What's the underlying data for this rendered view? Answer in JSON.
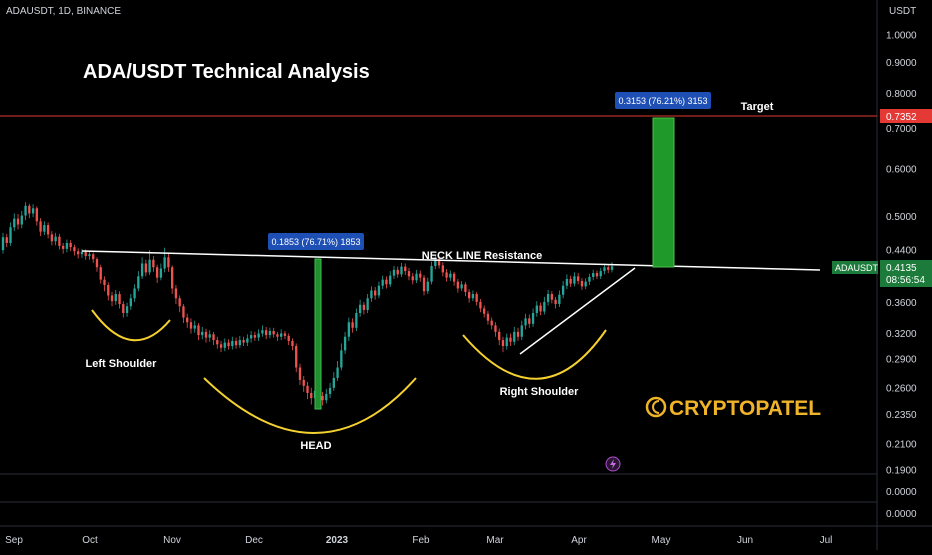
{
  "header": {
    "symbol": "ADAUSDT, 1D, BINANCE",
    "currency": "USDT"
  },
  "title": "ADA/USDT Technical Analysis",
  "brand": {
    "name": "CRYPTOPATEL",
    "color": "#f0b429"
  },
  "colors": {
    "up": "#26a69a",
    "down": "#ef5350",
    "pattern": "#f5d130",
    "target_line": "#e53935",
    "measure": "#2ea043"
  },
  "chart_data": {
    "type": "candlestick",
    "price_axis": {
      "ticks": [
        "1.0000",
        "0.9000",
        "0.8000",
        "0.7000",
        "0.6000",
        "0.5000",
        "0.4400",
        "0.3600",
        "0.3200",
        "0.2900",
        "0.2600",
        "0.2350",
        "0.2100",
        "0.1900"
      ],
      "scale": "log"
    },
    "indicator_axis": {
      "ticks": [
        "0.0000",
        "0.0000"
      ]
    },
    "time_axis": {
      "ticks": [
        "Sep",
        "Oct",
        "Nov",
        "Dec",
        "2023",
        "Feb",
        "Mar",
        "Apr",
        "May",
        "Jun",
        "Jul"
      ]
    },
    "last_price": {
      "symbol": "ADAUSDT",
      "value": "0.4135",
      "countdown": "08:56:54"
    },
    "target": {
      "label": "Target",
      "value": "0.7352"
    },
    "measures": [
      {
        "text": "0.1853 (76.71%) 1853"
      },
      {
        "text": "0.3153 (76.21%) 3153"
      }
    ],
    "annotations": {
      "neckline": "NECK LINE Resistance",
      "left_shoulder": "Left Shoulder",
      "head": "HEAD",
      "right_shoulder": "Right Shoulder"
    },
    "candles": [
      {
        "o": 0.44,
        "c": 0.462,
        "h": 0.47,
        "l": 0.434
      },
      {
        "o": 0.462,
        "c": 0.452,
        "h": 0.468,
        "l": 0.445
      },
      {
        "o": 0.452,
        "c": 0.48,
        "h": 0.489,
        "l": 0.447
      },
      {
        "o": 0.48,
        "c": 0.496,
        "h": 0.506,
        "l": 0.473
      },
      {
        "o": 0.496,
        "c": 0.485,
        "h": 0.505,
        "l": 0.476
      },
      {
        "o": 0.485,
        "c": 0.502,
        "h": 0.511,
        "l": 0.478
      },
      {
        "o": 0.502,
        "c": 0.521,
        "h": 0.528,
        "l": 0.493
      },
      {
        "o": 0.521,
        "c": 0.506,
        "h": 0.525,
        "l": 0.497
      },
      {
        "o": 0.506,
        "c": 0.516,
        "h": 0.524,
        "l": 0.499
      },
      {
        "o": 0.516,
        "c": 0.491,
        "h": 0.52,
        "l": 0.483
      },
      {
        "o": 0.491,
        "c": 0.472,
        "h": 0.497,
        "l": 0.464
      },
      {
        "o": 0.472,
        "c": 0.484,
        "h": 0.491,
        "l": 0.466
      },
      {
        "o": 0.484,
        "c": 0.467,
        "h": 0.489,
        "l": 0.46
      },
      {
        "o": 0.467,
        "c": 0.455,
        "h": 0.473,
        "l": 0.448
      },
      {
        "o": 0.455,
        "c": 0.463,
        "h": 0.47,
        "l": 0.448
      },
      {
        "o": 0.463,
        "c": 0.447,
        "h": 0.468,
        "l": 0.441
      },
      {
        "o": 0.447,
        "c": 0.442,
        "h": 0.452,
        "l": 0.434
      },
      {
        "o": 0.442,
        "c": 0.452,
        "h": 0.458,
        "l": 0.436
      },
      {
        "o": 0.452,
        "c": 0.445,
        "h": 0.457,
        "l": 0.438
      },
      {
        "o": 0.445,
        "c": 0.438,
        "h": 0.449,
        "l": 0.431
      },
      {
        "o": 0.438,
        "c": 0.433,
        "h": 0.443,
        "l": 0.426
      },
      {
        "o": 0.433,
        "c": 0.437,
        "h": 0.442,
        "l": 0.427
      },
      {
        "o": 0.437,
        "c": 0.43,
        "h": 0.441,
        "l": 0.424
      },
      {
        "o": 0.43,
        "c": 0.433,
        "h": 0.438,
        "l": 0.424
      },
      {
        "o": 0.433,
        "c": 0.425,
        "h": 0.436,
        "l": 0.419
      },
      {
        "o": 0.425,
        "c": 0.412,
        "h": 0.428,
        "l": 0.405
      },
      {
        "o": 0.412,
        "c": 0.393,
        "h": 0.416,
        "l": 0.387
      },
      {
        "o": 0.393,
        "c": 0.385,
        "h": 0.398,
        "l": 0.376
      },
      {
        "o": 0.385,
        "c": 0.37,
        "h": 0.389,
        "l": 0.363
      },
      {
        "o": 0.37,
        "c": 0.362,
        "h": 0.375,
        "l": 0.355
      },
      {
        "o": 0.362,
        "c": 0.372,
        "h": 0.378,
        "l": 0.357
      },
      {
        "o": 0.372,
        "c": 0.358,
        "h": 0.376,
        "l": 0.352
      },
      {
        "o": 0.358,
        "c": 0.346,
        "h": 0.362,
        "l": 0.34
      },
      {
        "o": 0.346,
        "c": 0.355,
        "h": 0.36,
        "l": 0.341
      },
      {
        "o": 0.355,
        "c": 0.366,
        "h": 0.372,
        "l": 0.35
      },
      {
        "o": 0.366,
        "c": 0.38,
        "h": 0.386,
        "l": 0.361
      },
      {
        "o": 0.38,
        "c": 0.398,
        "h": 0.406,
        "l": 0.376
      },
      {
        "o": 0.398,
        "c": 0.418,
        "h": 0.428,
        "l": 0.394
      },
      {
        "o": 0.418,
        "c": 0.404,
        "h": 0.424,
        "l": 0.398
      },
      {
        "o": 0.404,
        "c": 0.424,
        "h": 0.44,
        "l": 0.4
      },
      {
        "o": 0.424,
        "c": 0.412,
        "h": 0.43,
        "l": 0.405
      },
      {
        "o": 0.412,
        "c": 0.396,
        "h": 0.416,
        "l": 0.388
      },
      {
        "o": 0.396,
        "c": 0.41,
        "h": 0.418,
        "l": 0.392
      },
      {
        "o": 0.41,
        "c": 0.428,
        "h": 0.444,
        "l": 0.404
      },
      {
        "o": 0.428,
        "c": 0.412,
        "h": 0.436,
        "l": 0.405
      },
      {
        "o": 0.412,
        "c": 0.38,
        "h": 0.415,
        "l": 0.372
      },
      {
        "o": 0.38,
        "c": 0.366,
        "h": 0.385,
        "l": 0.358
      },
      {
        "o": 0.366,
        "c": 0.355,
        "h": 0.37,
        "l": 0.347
      },
      {
        "o": 0.355,
        "c": 0.34,
        "h": 0.358,
        "l": 0.333
      },
      {
        "o": 0.34,
        "c": 0.334,
        "h": 0.345,
        "l": 0.327
      },
      {
        "o": 0.334,
        "c": 0.326,
        "h": 0.339,
        "l": 0.32
      },
      {
        "o": 0.326,
        "c": 0.33,
        "h": 0.336,
        "l": 0.321
      },
      {
        "o": 0.33,
        "c": 0.318,
        "h": 0.333,
        "l": 0.312
      },
      {
        "o": 0.318,
        "c": 0.322,
        "h": 0.328,
        "l": 0.313
      },
      {
        "o": 0.322,
        "c": 0.315,
        "h": 0.326,
        "l": 0.309
      },
      {
        "o": 0.315,
        "c": 0.319,
        "h": 0.324,
        "l": 0.31
      },
      {
        "o": 0.319,
        "c": 0.312,
        "h": 0.322,
        "l": 0.306
      },
      {
        "o": 0.312,
        "c": 0.307,
        "h": 0.316,
        "l": 0.302
      },
      {
        "o": 0.307,
        "c": 0.303,
        "h": 0.311,
        "l": 0.298
      },
      {
        "o": 0.303,
        "c": 0.309,
        "h": 0.314,
        "l": 0.299
      },
      {
        "o": 0.309,
        "c": 0.305,
        "h": 0.313,
        "l": 0.301
      },
      {
        "o": 0.305,
        "c": 0.311,
        "h": 0.316,
        "l": 0.301
      },
      {
        "o": 0.311,
        "c": 0.306,
        "h": 0.315,
        "l": 0.302
      },
      {
        "o": 0.306,
        "c": 0.312,
        "h": 0.317,
        "l": 0.303
      },
      {
        "o": 0.312,
        "c": 0.309,
        "h": 0.316,
        "l": 0.305
      },
      {
        "o": 0.309,
        "c": 0.314,
        "h": 0.319,
        "l": 0.305
      },
      {
        "o": 0.314,
        "c": 0.318,
        "h": 0.323,
        "l": 0.309
      },
      {
        "o": 0.318,
        "c": 0.315,
        "h": 0.322,
        "l": 0.311
      },
      {
        "o": 0.315,
        "c": 0.32,
        "h": 0.325,
        "l": 0.311
      },
      {
        "o": 0.32,
        "c": 0.324,
        "h": 0.33,
        "l": 0.316
      },
      {
        "o": 0.324,
        "c": 0.318,
        "h": 0.328,
        "l": 0.313
      },
      {
        "o": 0.318,
        "c": 0.323,
        "h": 0.327,
        "l": 0.314
      },
      {
        "o": 0.323,
        "c": 0.319,
        "h": 0.327,
        "l": 0.315
      },
      {
        "o": 0.319,
        "c": 0.316,
        "h": 0.322,
        "l": 0.311
      },
      {
        "o": 0.316,
        "c": 0.32,
        "h": 0.325,
        "l": 0.312
      },
      {
        "o": 0.32,
        "c": 0.317,
        "h": 0.323,
        "l": 0.313
      },
      {
        "o": 0.317,
        "c": 0.311,
        "h": 0.32,
        "l": 0.306
      },
      {
        "o": 0.311,
        "c": 0.305,
        "h": 0.314,
        "l": 0.3
      },
      {
        "o": 0.305,
        "c": 0.281,
        "h": 0.308,
        "l": 0.276
      },
      {
        "o": 0.281,
        "c": 0.268,
        "h": 0.285,
        "l": 0.263
      },
      {
        "o": 0.268,
        "c": 0.262,
        "h": 0.272,
        "l": 0.256
      },
      {
        "o": 0.262,
        "c": 0.255,
        "h": 0.266,
        "l": 0.249
      },
      {
        "o": 0.255,
        "c": 0.25,
        "h": 0.26,
        "l": 0.244
      },
      {
        "o": 0.25,
        "c": 0.257,
        "h": 0.262,
        "l": 0.246
      },
      {
        "o": 0.257,
        "c": 0.252,
        "h": 0.261,
        "l": 0.247
      },
      {
        "o": 0.252,
        "c": 0.248,
        "h": 0.256,
        "l": 0.243
      },
      {
        "o": 0.248,
        "c": 0.254,
        "h": 0.259,
        "l": 0.245
      },
      {
        "o": 0.254,
        "c": 0.26,
        "h": 0.265,
        "l": 0.25
      },
      {
        "o": 0.26,
        "c": 0.27,
        "h": 0.276,
        "l": 0.257
      },
      {
        "o": 0.27,
        "c": 0.281,
        "h": 0.288,
        "l": 0.267
      },
      {
        "o": 0.281,
        "c": 0.3,
        "h": 0.308,
        "l": 0.278
      },
      {
        "o": 0.3,
        "c": 0.316,
        "h": 0.322,
        "l": 0.296
      },
      {
        "o": 0.316,
        "c": 0.334,
        "h": 0.34,
        "l": 0.311
      },
      {
        "o": 0.334,
        "c": 0.327,
        "h": 0.339,
        "l": 0.321
      },
      {
        "o": 0.327,
        "c": 0.346,
        "h": 0.352,
        "l": 0.323
      },
      {
        "o": 0.346,
        "c": 0.357,
        "h": 0.364,
        "l": 0.341
      },
      {
        "o": 0.357,
        "c": 0.35,
        "h": 0.361,
        "l": 0.344
      },
      {
        "o": 0.35,
        "c": 0.366,
        "h": 0.372,
        "l": 0.346
      },
      {
        "o": 0.366,
        "c": 0.377,
        "h": 0.383,
        "l": 0.361
      },
      {
        "o": 0.377,
        "c": 0.37,
        "h": 0.382,
        "l": 0.364
      },
      {
        "o": 0.37,
        "c": 0.384,
        "h": 0.39,
        "l": 0.366
      },
      {
        "o": 0.384,
        "c": 0.393,
        "h": 0.399,
        "l": 0.379
      },
      {
        "o": 0.393,
        "c": 0.386,
        "h": 0.398,
        "l": 0.38
      },
      {
        "o": 0.386,
        "c": 0.399,
        "h": 0.406,
        "l": 0.382
      },
      {
        "o": 0.399,
        "c": 0.408,
        "h": 0.414,
        "l": 0.394
      },
      {
        "o": 0.408,
        "c": 0.401,
        "h": 0.413,
        "l": 0.396
      },
      {
        "o": 0.401,
        "c": 0.413,
        "h": 0.419,
        "l": 0.397
      },
      {
        "o": 0.413,
        "c": 0.406,
        "h": 0.418,
        "l": 0.4
      },
      {
        "o": 0.406,
        "c": 0.398,
        "h": 0.411,
        "l": 0.392
      },
      {
        "o": 0.398,
        "c": 0.392,
        "h": 0.403,
        "l": 0.386
      },
      {
        "o": 0.392,
        "c": 0.402,
        "h": 0.408,
        "l": 0.388
      },
      {
        "o": 0.402,
        "c": 0.396,
        "h": 0.407,
        "l": 0.39
      },
      {
        "o": 0.396,
        "c": 0.376,
        "h": 0.4,
        "l": 0.37
      },
      {
        "o": 0.376,
        "c": 0.39,
        "h": 0.396,
        "l": 0.372
      },
      {
        "o": 0.39,
        "c": 0.414,
        "h": 0.421,
        "l": 0.386
      },
      {
        "o": 0.414,
        "c": 0.425,
        "h": 0.432,
        "l": 0.409
      },
      {
        "o": 0.425,
        "c": 0.415,
        "h": 0.43,
        "l": 0.41
      },
      {
        "o": 0.415,
        "c": 0.404,
        "h": 0.42,
        "l": 0.398
      },
      {
        "o": 0.404,
        "c": 0.396,
        "h": 0.409,
        "l": 0.39
      },
      {
        "o": 0.396,
        "c": 0.402,
        "h": 0.407,
        "l": 0.391
      },
      {
        "o": 0.402,
        "c": 0.39,
        "h": 0.405,
        "l": 0.384
      },
      {
        "o": 0.39,
        "c": 0.38,
        "h": 0.394,
        "l": 0.374
      },
      {
        "o": 0.38,
        "c": 0.386,
        "h": 0.391,
        "l": 0.376
      },
      {
        "o": 0.386,
        "c": 0.375,
        "h": 0.389,
        "l": 0.369
      },
      {
        "o": 0.375,
        "c": 0.366,
        "h": 0.379,
        "l": 0.36
      },
      {
        "o": 0.366,
        "c": 0.372,
        "h": 0.377,
        "l": 0.362
      },
      {
        "o": 0.372,
        "c": 0.361,
        "h": 0.375,
        "l": 0.356
      },
      {
        "o": 0.361,
        "c": 0.352,
        "h": 0.365,
        "l": 0.347
      },
      {
        "o": 0.352,
        "c": 0.345,
        "h": 0.356,
        "l": 0.34
      },
      {
        "o": 0.345,
        "c": 0.336,
        "h": 0.349,
        "l": 0.331
      },
      {
        "o": 0.336,
        "c": 0.33,
        "h": 0.34,
        "l": 0.325
      },
      {
        "o": 0.33,
        "c": 0.322,
        "h": 0.334,
        "l": 0.316
      },
      {
        "o": 0.322,
        "c": 0.312,
        "h": 0.326,
        "l": 0.306
      },
      {
        "o": 0.312,
        "c": 0.305,
        "h": 0.316,
        "l": 0.298
      },
      {
        "o": 0.305,
        "c": 0.315,
        "h": 0.32,
        "l": 0.301
      },
      {
        "o": 0.315,
        "c": 0.31,
        "h": 0.32,
        "l": 0.305
      },
      {
        "o": 0.31,
        "c": 0.322,
        "h": 0.328,
        "l": 0.306
      },
      {
        "o": 0.322,
        "c": 0.316,
        "h": 0.327,
        "l": 0.311
      },
      {
        "o": 0.316,
        "c": 0.33,
        "h": 0.336,
        "l": 0.312
      },
      {
        "o": 0.33,
        "c": 0.339,
        "h": 0.345,
        "l": 0.325
      },
      {
        "o": 0.339,
        "c": 0.332,
        "h": 0.344,
        "l": 0.327
      },
      {
        "o": 0.332,
        "c": 0.346,
        "h": 0.352,
        "l": 0.328
      },
      {
        "o": 0.346,
        "c": 0.356,
        "h": 0.362,
        "l": 0.341
      },
      {
        "o": 0.356,
        "c": 0.348,
        "h": 0.36,
        "l": 0.343
      },
      {
        "o": 0.348,
        "c": 0.361,
        "h": 0.368,
        "l": 0.344
      },
      {
        "o": 0.361,
        "c": 0.372,
        "h": 0.378,
        "l": 0.356
      },
      {
        "o": 0.372,
        "c": 0.364,
        "h": 0.376,
        "l": 0.359
      },
      {
        "o": 0.364,
        "c": 0.358,
        "h": 0.368,
        "l": 0.352
      },
      {
        "o": 0.358,
        "c": 0.371,
        "h": 0.377,
        "l": 0.354
      },
      {
        "o": 0.371,
        "c": 0.384,
        "h": 0.391,
        "l": 0.366
      },
      {
        "o": 0.384,
        "c": 0.394,
        "h": 0.401,
        "l": 0.379
      },
      {
        "o": 0.394,
        "c": 0.387,
        "h": 0.399,
        "l": 0.382
      },
      {
        "o": 0.387,
        "c": 0.398,
        "h": 0.404,
        "l": 0.383
      },
      {
        "o": 0.398,
        "c": 0.391,
        "h": 0.403,
        "l": 0.386
      },
      {
        "o": 0.391,
        "c": 0.383,
        "h": 0.395,
        "l": 0.378
      },
      {
        "o": 0.383,
        "c": 0.39,
        "h": 0.395,
        "l": 0.379
      },
      {
        "o": 0.39,
        "c": 0.397,
        "h": 0.402,
        "l": 0.385
      },
      {
        "o": 0.397,
        "c": 0.403,
        "h": 0.408,
        "l": 0.392
      },
      {
        "o": 0.403,
        "c": 0.398,
        "h": 0.407,
        "l": 0.394
      },
      {
        "o": 0.398,
        "c": 0.406,
        "h": 0.411,
        "l": 0.394
      },
      {
        "o": 0.406,
        "c": 0.412,
        "h": 0.418,
        "l": 0.401
      },
      {
        "o": 0.412,
        "c": 0.408,
        "h": 0.416,
        "l": 0.403
      },
      {
        "o": 0.408,
        "c": 0.4135,
        "h": 0.42,
        "l": 0.404
      }
    ]
  }
}
